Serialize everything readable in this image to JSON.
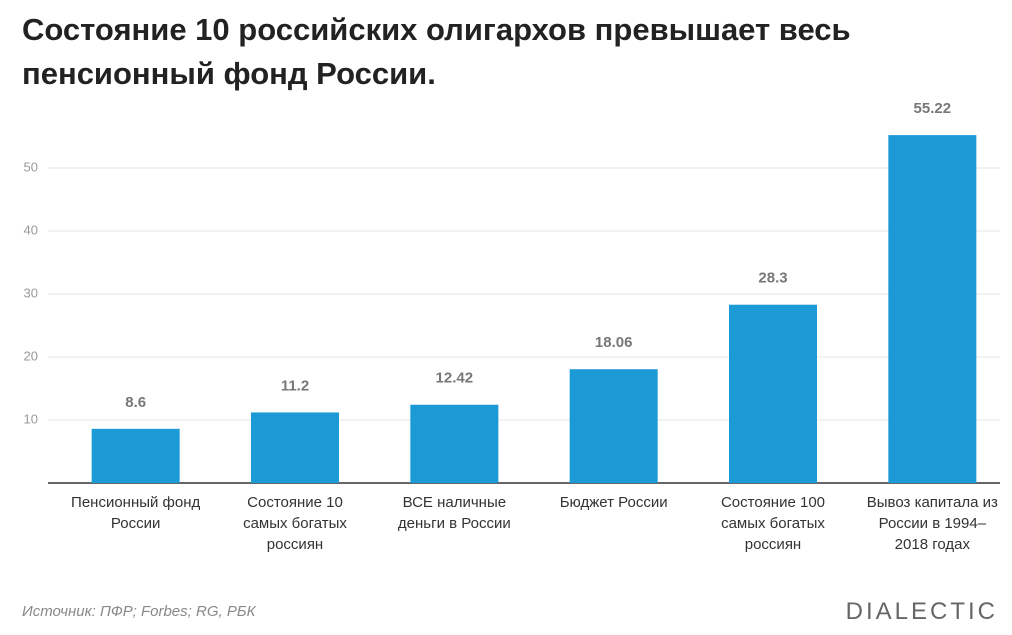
{
  "chart_data": {
    "type": "bar",
    "title": "Состояние 10 российских олигархов превышает весь пенсионный фонд России.",
    "categories": [
      "Пенсионный фонд России",
      "Состояние 10 самых богатых россиян",
      "ВСЕ наличные деньги в России",
      "Бюджет России",
      "Состояние 100 самых богатых россиян",
      "Вывоз капитала из России в 1994–2018 годах"
    ],
    "values": [
      8.6,
      11.2,
      12.42,
      18.06,
      28.3,
      55.22
    ],
    "color": "#1b9ad6",
    "ylim": [
      0,
      60
    ],
    "yticks": [
      10,
      20,
      30,
      40,
      50
    ],
    "grid": true,
    "source": "Источник: ПФР; Forbes; RG, РБК",
    "logo": "DIALECTIC"
  }
}
